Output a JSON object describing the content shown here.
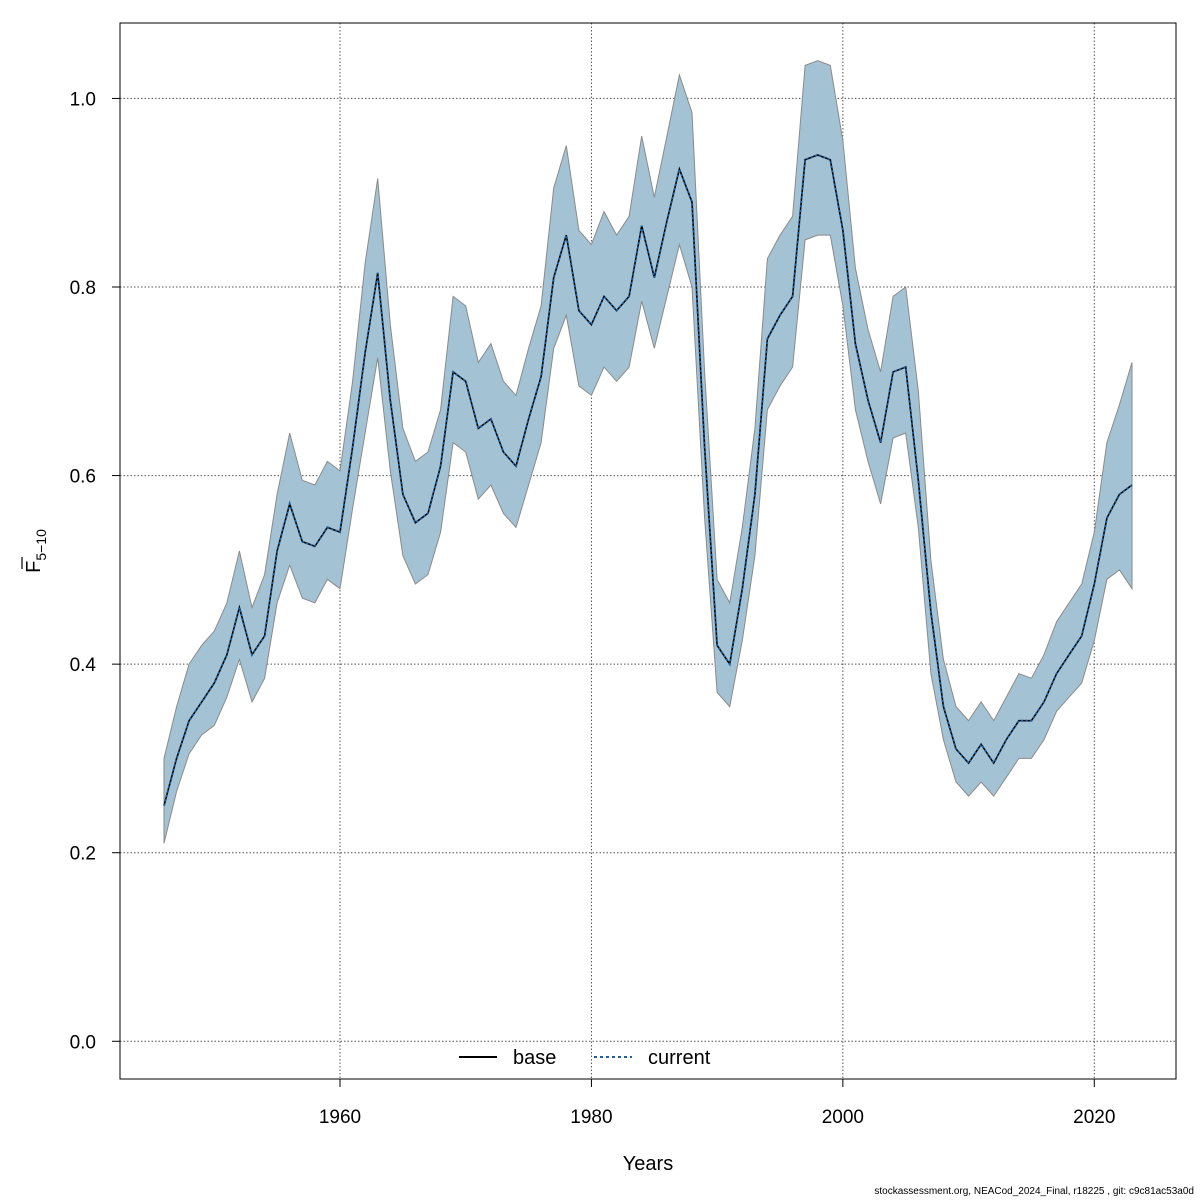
{
  "chart_data": {
    "type": "area",
    "xlabel": "Years",
    "ylabel": {
      "main": "F",
      "sub": "5−10"
    },
    "xlim": [
      1942.5,
      2026.5
    ],
    "ylim": [
      -0.04,
      1.08
    ],
    "x_ticks": [
      1960,
      1980,
      2000,
      2020
    ],
    "y_ticks": [
      0.0,
      0.2,
      0.4,
      0.6,
      0.8,
      1.0
    ],
    "y_tick_labels": [
      "0.0",
      "0.2",
      "0.4",
      "0.6",
      "0.8",
      "1.0"
    ],
    "grid": true,
    "legend_position": "bottom-center",
    "colors": {
      "band_fill": "#a3c3d4",
      "band_edge": "#8a8a8a",
      "base": "#000000",
      "current": "#1f5fa0",
      "grid": "#555555"
    },
    "series": [
      {
        "name": "base",
        "style": "solid"
      },
      {
        "name": "current",
        "style": "dashed"
      }
    ],
    "x": [
      1946,
      1947,
      1948,
      1949,
      1950,
      1951,
      1952,
      1953,
      1954,
      1955,
      1956,
      1957,
      1958,
      1959,
      1960,
      1961,
      1962,
      1963,
      1964,
      1965,
      1966,
      1967,
      1968,
      1969,
      1970,
      1971,
      1972,
      1973,
      1974,
      1975,
      1976,
      1977,
      1978,
      1979,
      1980,
      1981,
      1982,
      1983,
      1984,
      1985,
      1986,
      1987,
      1988,
      1989,
      1990,
      1991,
      1992,
      1993,
      1994,
      1995,
      1996,
      1997,
      1998,
      1999,
      2000,
      2001,
      2002,
      2003,
      2004,
      2005,
      2006,
      2007,
      2008,
      2009,
      2010,
      2011,
      2012,
      2013,
      2014,
      2015,
      2016,
      2017,
      2018,
      2019,
      2020,
      2021,
      2022,
      2023
    ],
    "estimate": [
      0.25,
      0.3,
      0.34,
      0.36,
      0.38,
      0.41,
      0.46,
      0.41,
      0.43,
      0.52,
      0.57,
      0.53,
      0.525,
      0.545,
      0.54,
      0.63,
      0.73,
      0.815,
      0.68,
      0.58,
      0.55,
      0.56,
      0.61,
      0.71,
      0.7,
      0.65,
      0.66,
      0.625,
      0.61,
      0.66,
      0.705,
      0.81,
      0.855,
      0.775,
      0.76,
      0.79,
      0.775,
      0.79,
      0.865,
      0.81,
      0.87,
      0.925,
      0.89,
      0.63,
      0.42,
      0.4,
      0.48,
      0.58,
      0.745,
      0.77,
      0.79,
      0.935,
      0.94,
      0.935,
      0.86,
      0.74,
      0.68,
      0.635,
      0.71,
      0.715,
      0.595,
      0.455,
      0.355,
      0.31,
      0.295,
      0.315,
      0.295,
      0.32,
      0.34,
      0.34,
      0.36,
      0.39,
      0.41,
      0.43,
      0.485,
      0.555,
      0.58,
      0.59
    ],
    "upper": [
      0.3,
      0.355,
      0.4,
      0.42,
      0.435,
      0.465,
      0.52,
      0.46,
      0.495,
      0.58,
      0.645,
      0.595,
      0.59,
      0.615,
      0.605,
      0.7,
      0.825,
      0.915,
      0.76,
      0.65,
      0.615,
      0.625,
      0.67,
      0.79,
      0.78,
      0.72,
      0.74,
      0.7,
      0.685,
      0.735,
      0.78,
      0.905,
      0.95,
      0.86,
      0.845,
      0.88,
      0.855,
      0.875,
      0.96,
      0.895,
      0.96,
      1.025,
      0.985,
      0.71,
      0.49,
      0.465,
      0.545,
      0.65,
      0.83,
      0.855,
      0.875,
      1.035,
      1.04,
      1.035,
      0.955,
      0.82,
      0.755,
      0.71,
      0.79,
      0.8,
      0.69,
      0.51,
      0.405,
      0.355,
      0.34,
      0.36,
      0.34,
      0.365,
      0.39,
      0.385,
      0.41,
      0.445,
      0.465,
      0.485,
      0.54,
      0.635,
      0.675,
      0.72
    ],
    "lower": [
      0.21,
      0.265,
      0.305,
      0.325,
      0.335,
      0.365,
      0.405,
      0.36,
      0.385,
      0.465,
      0.505,
      0.47,
      0.465,
      0.49,
      0.48,
      0.565,
      0.645,
      0.725,
      0.605,
      0.515,
      0.485,
      0.495,
      0.54,
      0.635,
      0.625,
      0.575,
      0.59,
      0.56,
      0.545,
      0.59,
      0.635,
      0.735,
      0.77,
      0.695,
      0.685,
      0.715,
      0.7,
      0.715,
      0.785,
      0.735,
      0.79,
      0.845,
      0.8,
      0.555,
      0.37,
      0.355,
      0.425,
      0.515,
      0.67,
      0.695,
      0.715,
      0.85,
      0.855,
      0.855,
      0.78,
      0.67,
      0.615,
      0.57,
      0.64,
      0.645,
      0.545,
      0.39,
      0.32,
      0.275,
      0.26,
      0.275,
      0.26,
      0.28,
      0.3,
      0.3,
      0.32,
      0.35,
      0.365,
      0.38,
      0.425,
      0.49,
      0.5,
      0.48
    ]
  },
  "footer": "stockassessment.org, NEACod_2024_Final, r18225 , git: c9c81ac53a0d"
}
